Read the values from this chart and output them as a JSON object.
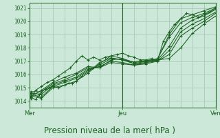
{
  "bg_color": "#cce8d8",
  "grid_color": "#a8cbb8",
  "line_color": "#1a6020",
  "xlabel": "Pression niveau de la mer( hPa )",
  "xlabel_fontsize": 8.5,
  "yticks": [
    1014,
    1015,
    1016,
    1017,
    1018,
    1019,
    1020,
    1021
  ],
  "ylim": [
    1013.5,
    1021.4
  ],
  "xlim": [
    0,
    96
  ],
  "vlines_dark": [
    0,
    48,
    96
  ],
  "series": [
    [
      0.5,
      1014.3,
      3,
      1014.1,
      5,
      1014.5,
      8,
      1014.9,
      10,
      1015.0,
      12,
      1015.1,
      15,
      1015.0,
      18,
      1015.2,
      20,
      1015.35,
      22,
      1015.3,
      24,
      1015.5,
      27,
      1015.9,
      30,
      1016.2,
      33,
      1016.5,
      36,
      1016.9,
      42,
      1017.25,
      48,
      1017.1,
      54,
      1016.95,
      60,
      1017.05,
      66,
      1017.15,
      72,
      1019.0,
      78,
      1020.2,
      84,
      1020.5,
      90,
      1020.8,
      96,
      1021.1
    ],
    [
      0.5,
      1014.4,
      6,
      1014.2,
      12,
      1015.0,
      18,
      1015.2,
      24,
      1015.5,
      30,
      1016.1,
      36,
      1016.8,
      42,
      1017.4,
      48,
      1017.2,
      54,
      1016.9,
      60,
      1017.0,
      66,
      1017.2,
      72,
      1018.8,
      78,
      1019.9,
      84,
      1020.3,
      90,
      1020.6,
      96,
      1021.0
    ],
    [
      0.5,
      1014.5,
      6,
      1014.3,
      12,
      1015.1,
      18,
      1015.4,
      24,
      1015.7,
      30,
      1016.3,
      36,
      1016.7,
      42,
      1017.2,
      48,
      1017.1,
      54,
      1016.8,
      60,
      1016.9,
      66,
      1017.1,
      72,
      1018.1,
      78,
      1019.5,
      84,
      1020.1,
      90,
      1020.4,
      96,
      1020.9
    ],
    [
      0.5,
      1014.6,
      6,
      1014.5,
      12,
      1015.2,
      18,
      1015.5,
      24,
      1015.8,
      30,
      1016.4,
      36,
      1016.6,
      42,
      1017.0,
      48,
      1016.9,
      54,
      1016.7,
      60,
      1016.8,
      66,
      1017.0,
      72,
      1017.8,
      78,
      1019.2,
      84,
      1019.8,
      90,
      1020.2,
      96,
      1020.7
    ],
    [
      0.5,
      1014.7,
      6,
      1014.7,
      12,
      1015.3,
      18,
      1015.6,
      24,
      1016.0,
      30,
      1016.5,
      36,
      1016.5,
      42,
      1016.9,
      48,
      1016.8,
      54,
      1016.7,
      60,
      1016.9,
      66,
      1017.0,
      72,
      1017.5,
      78,
      1018.9,
      84,
      1019.5,
      90,
      1020.0,
      96,
      1020.6
    ],
    [
      0.5,
      1014.3,
      6,
      1014.8,
      12,
      1015.4,
      18,
      1015.8,
      24,
      1016.1,
      30,
      1016.6,
      36,
      1016.5,
      42,
      1017.1,
      48,
      1017.2,
      54,
      1016.8,
      60,
      1017.0,
      72,
      1017.2,
      78,
      1018.0,
      84,
      1019.1,
      90,
      1019.8,
      96,
      1020.4
    ],
    [
      0.5,
      1014.2,
      3,
      1014.8,
      6,
      1015.1,
      9,
      1015.4,
      12,
      1015.6,
      15,
      1015.9,
      18,
      1016.2,
      21,
      1016.5,
      24,
      1017.0,
      27,
      1017.4,
      30,
      1017.1,
      33,
      1017.3,
      36,
      1017.1,
      39,
      1017.3,
      42,
      1017.4,
      45,
      1017.5,
      48,
      1017.6,
      51,
      1017.4,
      54,
      1017.3,
      57,
      1017.1,
      60,
      1017.1,
      63,
      1017.2,
      66,
      1017.0,
      69,
      1018.5,
      72,
      1019.2,
      75,
      1019.8,
      78,
      1020.2,
      81,
      1020.6,
      84,
      1020.5,
      87,
      1020.3,
      90,
      1020.5,
      93,
      1020.7,
      96,
      1021.0
    ]
  ]
}
